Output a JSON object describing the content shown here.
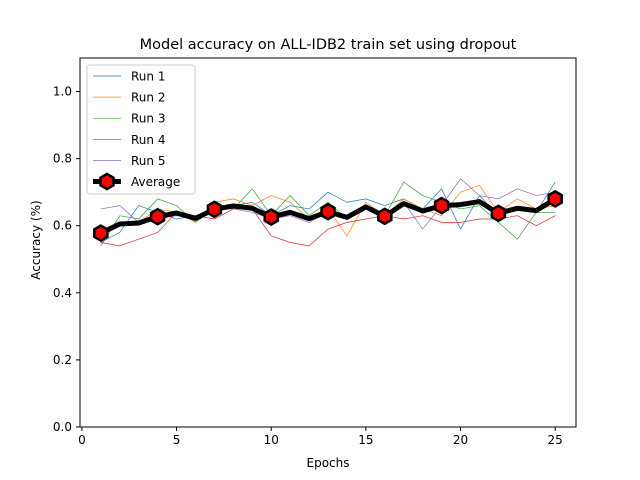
{
  "chart_data": {
    "type": "line",
    "title": "Model accuracy on ALL-IDB2 train set using dropout",
    "xlabel": "Epochs",
    "ylabel": "Accuracy (%)",
    "xlim": [
      -0.1,
      26.1
    ],
    "ylim": [
      0.0,
      1.1
    ],
    "xticks": [
      0,
      5,
      10,
      15,
      20,
      25
    ],
    "yticks": [
      0.0,
      0.2,
      0.4,
      0.6,
      0.8,
      1.0
    ],
    "xtick_labels": [
      "0",
      "5",
      "10",
      "15",
      "20",
      "25"
    ],
    "ytick_labels": [
      "0.0",
      "0.2",
      "0.4",
      "0.6",
      "0.8",
      "1.0"
    ],
    "grid": false,
    "legend_position": "top-left",
    "x": [
      1,
      2,
      3,
      4,
      5,
      6,
      7,
      8,
      9,
      10,
      11,
      12,
      13,
      14,
      15,
      16,
      17,
      18,
      19,
      20,
      21,
      22,
      23,
      24,
      25
    ],
    "series": [
      {
        "name": "Run 1",
        "color": "#1f77b4",
        "values": [
          0.55,
          0.58,
          0.66,
          0.64,
          0.62,
          0.63,
          0.65,
          0.66,
          0.67,
          0.63,
          0.66,
          0.65,
          0.7,
          0.67,
          0.68,
          0.66,
          0.68,
          0.65,
          0.71,
          0.59,
          0.69,
          0.63,
          0.65,
          0.64,
          0.73
        ]
      },
      {
        "name": "Run 2",
        "color": "#ff7f0e",
        "values": [
          0.57,
          0.6,
          0.61,
          0.65,
          0.64,
          0.61,
          0.67,
          0.68,
          0.66,
          0.69,
          0.67,
          0.62,
          0.65,
          0.57,
          0.67,
          0.63,
          0.68,
          0.65,
          0.63,
          0.7,
          0.72,
          0.64,
          0.68,
          0.65,
          0.66
        ]
      },
      {
        "name": "Run 3",
        "color": "#2ca02c",
        "values": [
          0.54,
          0.63,
          0.62,
          0.68,
          0.66,
          0.61,
          0.65,
          0.65,
          0.71,
          0.63,
          0.69,
          0.63,
          0.67,
          0.62,
          0.65,
          0.63,
          0.73,
          0.69,
          0.67,
          0.65,
          0.66,
          0.61,
          0.56,
          0.64,
          0.64
        ]
      },
      {
        "name": "Run 4",
        "color": "#d62728",
        "values": [
          0.55,
          0.54,
          0.56,
          0.58,
          0.64,
          0.63,
          0.62,
          0.65,
          0.65,
          0.57,
          0.55,
          0.54,
          0.59,
          0.61,
          0.62,
          0.63,
          0.62,
          0.63,
          0.61,
          0.61,
          0.62,
          0.62,
          0.63,
          0.6,
          0.63
        ]
      },
      {
        "name": "Run 5",
        "color": "#9467bd",
        "values": [
          0.65,
          0.66,
          0.61,
          0.62,
          0.63,
          0.62,
          0.66,
          0.65,
          0.64,
          0.62,
          0.63,
          0.61,
          0.64,
          0.63,
          0.66,
          0.63,
          0.67,
          0.59,
          0.66,
          0.74,
          0.69,
          0.68,
          0.71,
          0.69,
          0.7
        ]
      },
      {
        "name": "Average",
        "color": "#000000",
        "marker_color": "#ff0000",
        "markers_at": [
          1,
          4,
          7,
          10,
          13,
          16,
          19,
          22,
          25
        ],
        "values": [
          0.578,
          0.605,
          0.608,
          0.627,
          0.638,
          0.622,
          0.649,
          0.659,
          0.652,
          0.626,
          0.64,
          0.621,
          0.642,
          0.625,
          0.656,
          0.628,
          0.666,
          0.644,
          0.66,
          0.663,
          0.672,
          0.637,
          0.652,
          0.645,
          0.68
        ]
      }
    ]
  }
}
